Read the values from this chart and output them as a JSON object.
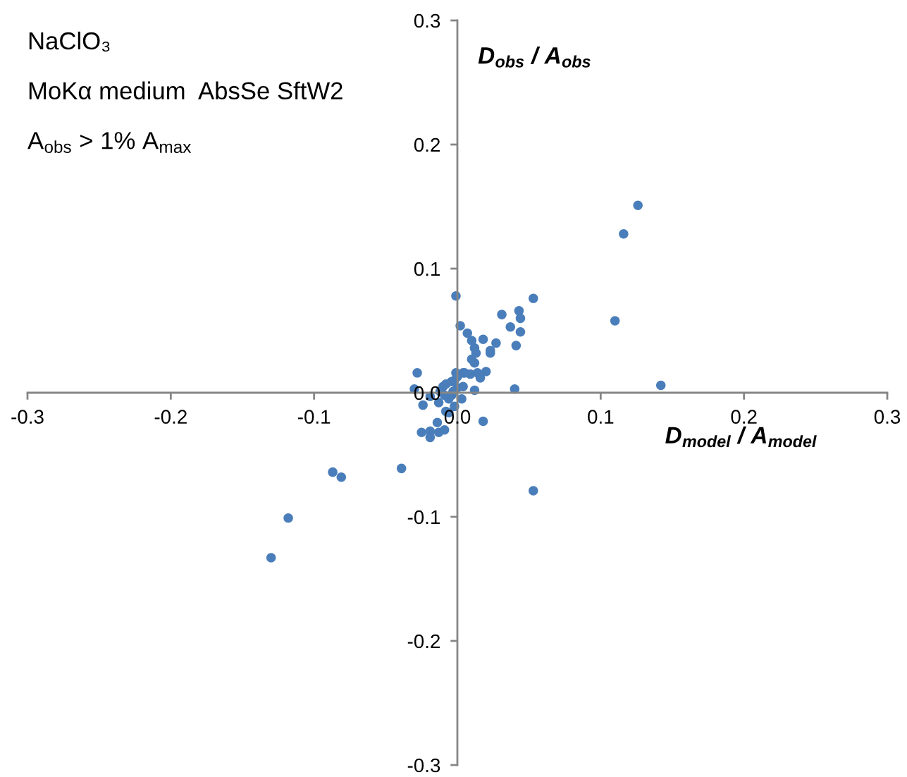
{
  "chart_data": {
    "type": "scatter",
    "annotations": [
      "NaClO₃",
      "MoKα medium  AbsSe SftW2",
      "A$_{obs}$ > 1% A$_{max}$"
    ],
    "xlabel": "D$_{model}$ / A$_{model}$",
    "ylabel": "D$_{obs}$ / A$_{obs}$",
    "xlim": [
      -0.3,
      0.3
    ],
    "ylim": [
      -0.3,
      0.3
    ],
    "xticks": [
      {
        "value": -0.3,
        "label": "-0.3"
      },
      {
        "value": -0.2,
        "label": "-0.2"
      },
      {
        "value": -0.1,
        "label": "-0.1"
      },
      {
        "value": 0,
        "label": "0.0"
      },
      {
        "value": 0.1,
        "label": "0.1"
      },
      {
        "value": 0.2,
        "label": "0.2"
      },
      {
        "value": 0.3,
        "label": "0.3"
      }
    ],
    "yticks": [
      {
        "value": -0.3,
        "label": "-0.3"
      },
      {
        "value": -0.2,
        "label": "-0.2"
      },
      {
        "value": -0.1,
        "label": "-0.1"
      },
      {
        "value": 0,
        "label": "0.0"
      },
      {
        "value": 0.1,
        "label": "0.1"
      },
      {
        "value": 0.2,
        "label": "0.2"
      },
      {
        "value": 0.3,
        "label": "0.3"
      }
    ],
    "grid": false,
    "legend": false,
    "marker": "circle",
    "series": [
      {
        "color": "#4a7ebb",
        "x": [
          0.126,
          0.116,
          0.11,
          0.142,
          0.053,
          0.053,
          0.043,
          0.044,
          0.044,
          0.037,
          0.031,
          0.041,
          0.04,
          -0.001,
          0.002,
          0.007,
          0.01,
          0.018,
          0.027,
          0.023,
          0.023,
          0.012,
          0.013,
          0.01,
          0.012,
          0.02,
          0.014,
          0.016,
          0.009,
          0.004,
          -0.001,
          0.012,
          -0.028,
          -0.03,
          -0.024,
          -0.013,
          0.018,
          -0.014,
          -0.025,
          -0.019,
          -0.019,
          -0.013,
          -0.009,
          -0.006,
          -0.008,
          -0.002,
          0.003,
          -0.006,
          -0.01,
          -0.008,
          -0.004,
          -0.002,
          0.0,
          0.004,
          -0.012,
          -0.009,
          -0.003,
          0.0,
          -0.004,
          0.005,
          -0.019,
          -0.039,
          -0.087,
          -0.081,
          -0.118,
          -0.13
        ],
        "values": [
          0.151,
          0.128,
          0.058,
          0.006,
          -0.079,
          0.076,
          0.066,
          0.06,
          0.049,
          0.053,
          0.063,
          0.038,
          0.003,
          0.078,
          0.054,
          0.048,
          0.042,
          0.043,
          0.04,
          0.034,
          0.032,
          0.036,
          0.032,
          0.027,
          0.024,
          0.017,
          0.016,
          0.012,
          0.015,
          0.016,
          0.016,
          0.002,
          0.016,
          0.003,
          -0.01,
          -0.008,
          -0.023,
          -0.024,
          -0.032,
          -0.031,
          -0.036,
          -0.032,
          -0.03,
          -0.016,
          -0.015,
          -0.011,
          -0.005,
          -0.005,
          0.005,
          0.007,
          0.009,
          0.01,
          0.013,
          0.005,
          0.001,
          -0.002,
          0.001,
          0.004,
          -0.002,
          0.016,
          -0.003,
          -0.061,
          -0.064,
          -0.068,
          -0.101,
          -0.133
        ]
      }
    ]
  }
}
